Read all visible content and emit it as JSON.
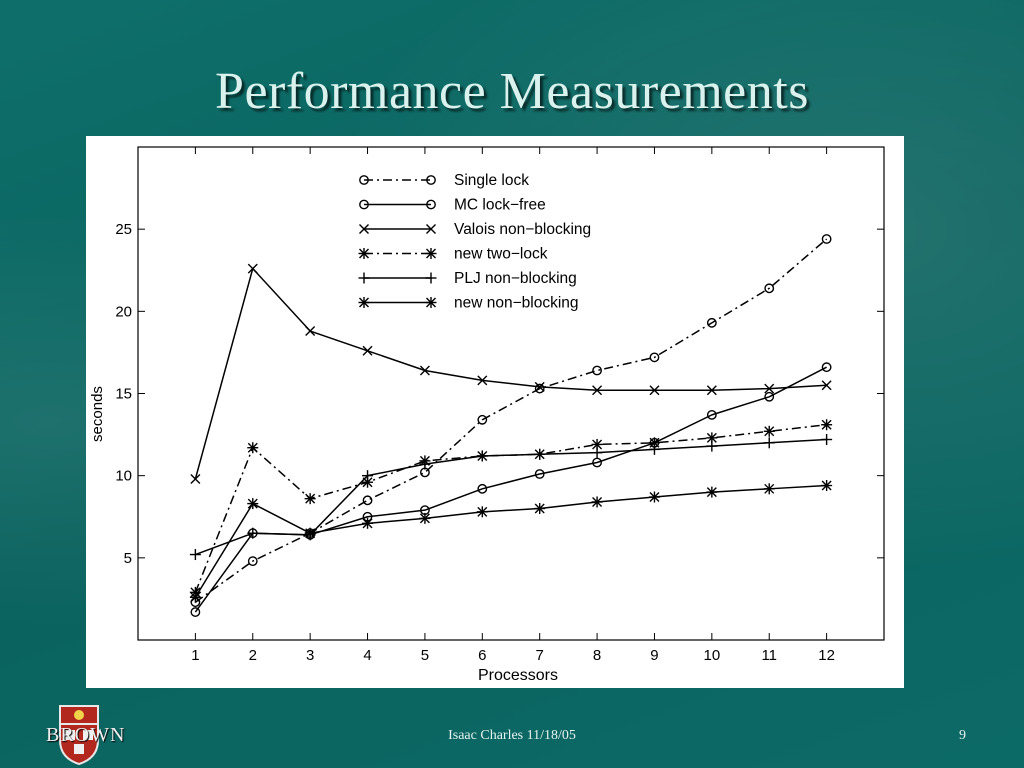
{
  "slide": {
    "title": "Performance Measurements",
    "footer_text": "Isaac Charles 11/18/05",
    "page_number": "9",
    "logo_text": "BROWN"
  },
  "chart_data": {
    "type": "line",
    "title": "",
    "xlabel": "Processors",
    "ylabel": "seconds",
    "x": [
      1,
      2,
      3,
      4,
      5,
      6,
      7,
      8,
      9,
      10,
      11,
      12
    ],
    "xlim": [
      0,
      13
    ],
    "ylim": [
      0,
      30
    ],
    "yticks": [
      5,
      10,
      15,
      20,
      25
    ],
    "grid": false,
    "legend_position": "top-center",
    "series": [
      {
        "name": "Single lock",
        "marker": "circle",
        "dash": "dashdot",
        "values": [
          2.3,
          4.8,
          6.5,
          8.5,
          10.2,
          13.4,
          15.3,
          16.4,
          17.2,
          19.3,
          21.4,
          24.4
        ]
      },
      {
        "name": "MC lock−free",
        "marker": "circle",
        "dash": "solid",
        "values": [
          1.7,
          6.5,
          6.4,
          7.5,
          7.9,
          9.2,
          10.1,
          10.8,
          12.0,
          13.7,
          14.8,
          16.6
        ]
      },
      {
        "name": "Valois non−blocking",
        "marker": "x",
        "dash": "solid",
        "values": [
          9.8,
          22.6,
          18.8,
          17.6,
          16.4,
          15.8,
          15.4,
          15.2,
          15.2,
          15.2,
          15.3,
          15.5
        ]
      },
      {
        "name": "new two−lock",
        "marker": "asterisk",
        "dash": "dashdot",
        "values": [
          2.9,
          11.7,
          8.6,
          9.6,
          10.9,
          11.2,
          11.3,
          11.9,
          12.0,
          12.3,
          12.7,
          13.1
        ]
      },
      {
        "name": "PLJ non−blocking",
        "marker": "plus",
        "dash": "solid",
        "values": [
          5.2,
          6.5,
          6.4,
          10.0,
          10.7,
          11.2,
          11.3,
          11.4,
          11.6,
          11.8,
          12.0,
          12.2
        ]
      },
      {
        "name": "new non−blocking",
        "marker": "asterisk",
        "dash": "solid",
        "values": [
          2.6,
          8.3,
          6.5,
          7.1,
          7.4,
          7.8,
          8.0,
          8.4,
          8.7,
          9.0,
          9.2,
          9.4
        ]
      }
    ]
  }
}
